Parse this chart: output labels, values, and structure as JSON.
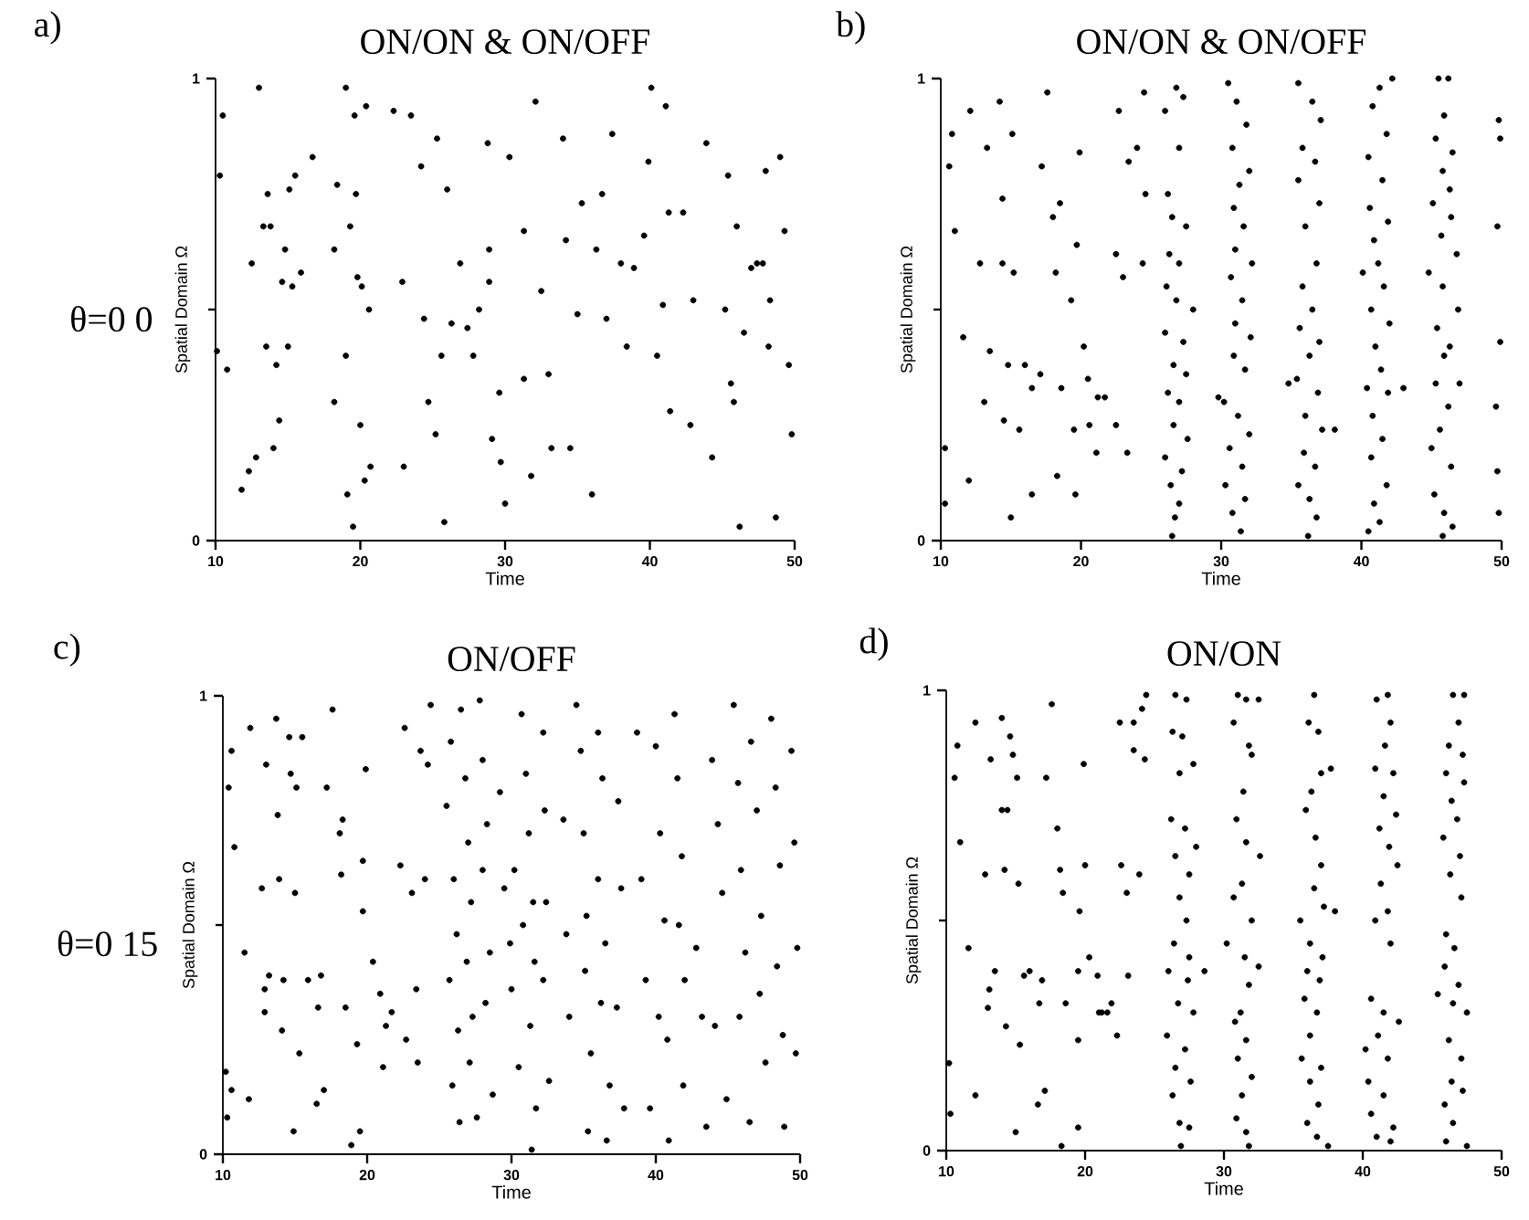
{
  "chart_data": [
    {
      "type": "scatter",
      "title": "ON/ON & ON/OFF",
      "xlabel": "Time",
      "ylabel": "Spatial Domain Ω",
      "annotations": [
        "a)",
        "θ=0 0"
      ],
      "color": "#000000",
      "marker": "circle",
      "xlim": [
        10,
        50
      ],
      "ylim": [
        0,
        1
      ],
      "xticks": [
        10,
        20,
        30,
        40,
        50
      ],
      "yticks": [
        0,
        1
      ],
      "x": [
        10.5,
        10.3,
        10.8,
        10.1,
        11.8,
        12.3,
        12.5,
        12.8,
        13.0,
        13.3,
        13.5,
        13.6,
        13.8,
        14.0,
        14.2,
        14.4,
        14.6,
        14.8,
        15.0,
        15.1,
        15.3,
        15.5,
        15.9,
        16.7,
        18.2,
        18.2,
        18.4,
        19.0,
        19.0,
        19.1,
        19.3,
        19.5,
        19.6,
        19.7,
        19.8,
        20.0,
        20.1,
        20.3,
        20.4,
        20.6,
        20.7,
        22.3,
        22.9,
        23.0,
        23.5,
        24.2,
        24.4,
        24.7,
        25.2,
        25.3,
        25.6,
        25.8,
        26.0,
        26.3,
        26.9,
        27.4,
        27.8,
        28.2,
        28.8,
        28.9,
        28.9,
        29.1,
        29.6,
        29.7,
        30.0,
        30.3,
        31.3,
        31.3,
        31.8,
        32.1,
        32.5,
        33.0,
        33.2,
        34.0,
        34.2,
        34.5,
        35.0,
        35.3,
        36.0,
        36.3,
        36.7,
        37.0,
        37.4,
        38.0,
        38.4,
        38.9,
        39.6,
        39.9,
        40.1,
        40.5,
        40.9,
        41.1,
        41.3,
        41.4,
        42.3,
        42.8,
        43.0,
        43.9,
        44.3,
        45.2,
        45.4,
        45.6,
        45.8,
        46.0,
        46.2,
        46.5,
        47.0,
        47.4,
        47.8,
        48.0,
        48.2,
        48.3,
        48.7,
        49.0,
        49.3,
        49.6,
        49.8
      ],
      "values": [
        0.92,
        0.79,
        0.37,
        0.41,
        0.11,
        0.15,
        0.6,
        0.18,
        0.98,
        0.68,
        0.42,
        0.75,
        0.68,
        0.2,
        0.38,
        0.26,
        0.56,
        0.63,
        0.42,
        0.76,
        0.55,
        0.79,
        0.58,
        0.83,
        0.63,
        0.3,
        0.77,
        0.98,
        0.4,
        0.1,
        0.68,
        0.03,
        0.92,
        0.75,
        0.57,
        0.25,
        0.55,
        0.13,
        0.94,
        0.5,
        0.16,
        0.93,
        0.56,
        0.16,
        0.92,
        0.81,
        0.48,
        0.3,
        0.23,
        0.87,
        0.4,
        0.04,
        0.76,
        0.47,
        0.6,
        0.46,
        0.4,
        0.5,
        0.86,
        0.63,
        0.56,
        0.22,
        0.32,
        0.17,
        0.08,
        0.83,
        0.67,
        0.35,
        0.14,
        0.95,
        0.54,
        0.36,
        0.2,
        0.87,
        0.65,
        0.2,
        0.49,
        0.73,
        0.1,
        0.63,
        0.75,
        0.48,
        0.88,
        0.6,
        0.42,
        0.59,
        0.66,
        0.82,
        0.98,
        0.4,
        0.51,
        0.94,
        0.71,
        0.28,
        0.71,
        0.25,
        0.52,
        0.86,
        0.18,
        0.5,
        0.79,
        0.34,
        0.3,
        0.68,
        0.03,
        0.45,
        0.59,
        0.6,
        0.6,
        0.8,
        0.42,
        0.52,
        0.05,
        0.83,
        0.67,
        0.38,
        0.23
      ]
    },
    {
      "type": "scatter",
      "title": "ON/ON & ON/OFF",
      "xlabel": "Time",
      "ylabel": "Spatial Domain Ω",
      "annotations": [
        "b)"
      ],
      "color": "#000000",
      "marker": "circle",
      "xlim": [
        10,
        50
      ],
      "ylim": [
        0,
        1
      ],
      "xticks": [
        10,
        20,
        30,
        40,
        50
      ],
      "yticks": [
        0,
        1
      ],
      "x": [
        10.3,
        10.3,
        10.6,
        10.8,
        11.0,
        11.6,
        12.0,
        12.1,
        12.8,
        13.1,
        13.3,
        13.5,
        14.2,
        14.4,
        14.4,
        14.5,
        14.8,
        15.0,
        15.1,
        15.2,
        15.6,
        16.0,
        16.5,
        16.5,
        17.1,
        17.2,
        17.6,
        18.0,
        18.2,
        18.3,
        18.5,
        18.6,
        19.3,
        19.5,
        19.6,
        19.7,
        19.9,
        20.2,
        20.6,
        20.5,
        21.1,
        21.2,
        21.7,
        22.5,
        22.5,
        22.7,
        23.0,
        23.3,
        23.4,
        24.0,
        24.4,
        24.5,
        24.6,
        26.0,
        26.8,
        27.3,
        26.2,
        27.0,
        26.5,
        27.5,
        26.3,
        27.0,
        26.1,
        26.8,
        28.0,
        26.0,
        27.3,
        26.6,
        27.5,
        26.2,
        27.0,
        26.6,
        27.6,
        26.0,
        27.2,
        26.4,
        27.0,
        26.7,
        26.5,
        30.5,
        31.1,
        31.8,
        30.8,
        32.0,
        31.3,
        30.9,
        31.6,
        31.0,
        32.2,
        30.7,
        31.5,
        31.0,
        32.1,
        30.9,
        31.7,
        30.2,
        31.2,
        32.0,
        30.6,
        31.5,
        30.3,
        31.7,
        30.8,
        31.4,
        29.8,
        35.5,
        36.5,
        37.1,
        35.8,
        36.7,
        35.5,
        37.0,
        36.0,
        36.8,
        35.8,
        36.5,
        35.6,
        37.0,
        36.3,
        35.4,
        36.9,
        36.0,
        37.2,
        35.9,
        36.7,
        35.5,
        36.3,
        36.8,
        36.2,
        38.1,
        34.8,
        41.3,
        42.2,
        40.8,
        41.8,
        40.5,
        41.5,
        40.6,
        41.9,
        40.9,
        41.2,
        40.1,
        41.6,
        40.7,
        42.0,
        41.0,
        41.4,
        40.4,
        41.9,
        43.0,
        40.8,
        41.5,
        40.7,
        41.8,
        40.9,
        41.3,
        40.5,
        45.5,
        46.2,
        45.9,
        45.3,
        46.5,
        45.8,
        46.3,
        45.1,
        46.4,
        45.7,
        46.8,
        44.8,
        45.8,
        46.9,
        45.4,
        46.3,
        45.9,
        47.0,
        45.3,
        46.2,
        45.6,
        45.0,
        46.4,
        45.2,
        45.9,
        46.5,
        45.8,
        49.8,
        49.9,
        49.7,
        49.9,
        49.6,
        49.7,
        49.8
      ],
      "values": [
        0.2,
        0.08,
        0.81,
        0.88,
        0.67,
        0.44,
        0.13,
        0.93,
        0.6,
        0.3,
        0.85,
        0.41,
        0.95,
        0.74,
        0.6,
        0.26,
        0.38,
        0.05,
        0.88,
        0.58,
        0.24,
        0.38,
        0.1,
        0.33,
        0.36,
        0.81,
        0.97,
        0.7,
        0.58,
        0.14,
        0.73,
        0.33,
        0.52,
        0.24,
        0.1,
        0.64,
        0.84,
        0.42,
        0.25,
        0.35,
        0.19,
        0.31,
        0.31,
        0.62,
        0.25,
        0.93,
        0.57,
        0.19,
        0.82,
        0.85,
        0.6,
        0.97,
        0.75,
        0.93,
        0.98,
        0.96,
        0.75,
        0.85,
        0.7,
        0.68,
        0.62,
        0.6,
        0.55,
        0.52,
        0.5,
        0.45,
        0.43,
        0.38,
        0.36,
        0.32,
        0.3,
        0.25,
        0.22,
        0.18,
        0.15,
        0.12,
        0.08,
        0.05,
        0.01,
        0.99,
        0.95,
        0.9,
        0.85,
        0.8,
        0.77,
        0.72,
        0.68,
        0.63,
        0.6,
        0.57,
        0.52,
        0.47,
        0.44,
        0.4,
        0.37,
        0.3,
        0.27,
        0.23,
        0.2,
        0.16,
        0.12,
        0.09,
        0.06,
        0.02,
        0.31,
        0.99,
        0.95,
        0.91,
        0.85,
        0.82,
        0.78,
        0.73,
        0.68,
        0.6,
        0.55,
        0.5,
        0.46,
        0.43,
        0.4,
        0.35,
        0.32,
        0.27,
        0.24,
        0.19,
        0.16,
        0.12,
        0.09,
        0.05,
        0.01,
        0.24,
        0.34,
        0.98,
        1.0,
        0.94,
        0.88,
        0.83,
        0.78,
        0.72,
        0.69,
        0.65,
        0.6,
        0.58,
        0.55,
        0.5,
        0.47,
        0.42,
        0.37,
        0.33,
        0.32,
        0.33,
        0.27,
        0.22,
        0.18,
        0.12,
        0.08,
        0.04,
        0.02,
        1.0,
        1.0,
        0.92,
        0.87,
        0.84,
        0.8,
        0.76,
        0.73,
        0.7,
        0.66,
        0.62,
        0.58,
        0.55,
        0.5,
        0.46,
        0.42,
        0.4,
        0.34,
        0.34,
        0.29,
        0.24,
        0.2,
        0.16,
        0.1,
        0.06,
        0.03,
        0.01,
        0.91,
        0.87,
        0.68,
        0.43,
        0.29,
        0.15,
        0.06
      ]
    },
    {
      "type": "scatter",
      "title": "ON/OFF",
      "xlabel": "Time",
      "ylabel": "Spatial Domain Ω",
      "annotations": [
        "c)",
        "θ=0 15"
      ],
      "color": "#000000",
      "marker": "circle",
      "xlim": [
        10,
        50
      ],
      "ylim": [
        0,
        1
      ],
      "xticks": [
        10,
        20,
        30,
        40,
        50
      ],
      "yticks": [
        0,
        1
      ],
      "x": [
        10.2,
        10.3,
        10.4,
        10.6,
        10.8,
        10.6,
        11.5,
        11.8,
        11.9,
        12.7,
        12.9,
        12.9,
        13.0,
        13.2,
        13.7,
        13.8,
        13.9,
        14.1,
        14.2,
        14.6,
        14.7,
        14.9,
        15.0,
        15.1,
        15.3,
        15.5,
        15.9,
        16.5,
        16.6,
        16.8,
        17.0,
        17.2,
        17.6,
        18.1,
        18.2,
        18.3,
        18.5,
        18.9,
        19.3,
        19.5,
        19.7,
        19.7,
        19.9,
        20.4,
        20.9,
        21.1,
        21.3,
        21.7,
        22.3,
        22.6,
        22.7,
        23.1,
        23.5,
        23.4,
        23.7,
        24.0,
        24.2,
        24.4,
        25.5,
        25.8,
        26.0,
        26.2,
        25.7,
        26.3,
        25.9,
        26.4,
        26.5,
        26.8,
        27.0,
        27.2,
        26.9,
        27.3,
        27.1,
        27.6,
        27.8,
        28.0,
        28.3,
        28.0,
        28.5,
        28.2,
        28.7,
        29.2,
        29.5,
        29.9,
        30.2,
        30.0,
        30.5,
        30.7,
        31.0,
        31.2,
        31.5,
        30.8,
        31.6,
        31.3,
        31.7,
        31.4,
        32.2,
        32.3,
        32.4,
        32.2,
        32.6,
        33.6,
        33.8,
        34.0,
        34.5,
        34.8,
        35.0,
        35.2,
        35.1,
        35.5,
        35.3,
        36.0,
        36.3,
        36.0,
        36.5,
        36.2,
        36.8,
        36.6,
        37.4,
        37.6,
        37.3,
        37.8,
        38.7,
        39.0,
        39.3,
        39.6,
        40.0,
        40.3,
        40.6,
        40.2,
        40.8,
        40.9,
        41.3,
        41.5,
        41.8,
        41.6,
        42.0,
        41.9,
        42.8,
        43.2,
        43.5,
        43.9,
        44.3,
        44.6,
        44.1,
        44.9,
        45.4,
        45.7,
        45.9,
        46.2,
        45.8,
        46.5,
        46.6,
        47.0,
        47.3,
        47.2,
        47.6,
        48.0,
        48.3,
        48.6,
        48.4,
        48.8,
        48.9,
        49.4,
        49.6,
        49.8,
        49.7
      ],
      "values": [
        0.18,
        0.08,
        0.8,
        0.88,
        0.67,
        0.14,
        0.44,
        0.12,
        0.93,
        0.58,
        0.36,
        0.31,
        0.85,
        0.39,
        0.95,
        0.74,
        0.6,
        0.27,
        0.38,
        0.91,
        0.83,
        0.05,
        0.57,
        0.8,
        0.22,
        0.91,
        0.38,
        0.11,
        0.32,
        0.39,
        0.14,
        0.8,
        0.97,
        0.7,
        0.61,
        0.73,
        0.32,
        0.02,
        0.24,
        0.05,
        0.53,
        0.64,
        0.84,
        0.42,
        0.35,
        0.19,
        0.28,
        0.31,
        0.63,
        0.93,
        0.25,
        0.57,
        0.2,
        0.36,
        0.88,
        0.6,
        0.85,
        0.98,
        0.76,
        0.9,
        0.6,
        0.48,
        0.38,
        0.27,
        0.15,
        0.07,
        0.97,
        0.82,
        0.68,
        0.55,
        0.42,
        0.3,
        0.2,
        0.08,
        0.99,
        0.86,
        0.72,
        0.62,
        0.44,
        0.33,
        0.13,
        0.79,
        0.58,
        0.46,
        0.62,
        0.36,
        0.19,
        0.96,
        0.83,
        0.7,
        0.55,
        0.5,
        0.42,
        0.28,
        0.1,
        0.01,
        0.92,
        0.75,
        0.55,
        0.38,
        0.16,
        0.73,
        0.48,
        0.3,
        0.98,
        0.88,
        0.7,
        0.52,
        0.4,
        0.22,
        0.05,
        0.92,
        0.82,
        0.6,
        0.46,
        0.33,
        0.15,
        0.03,
        0.77,
        0.58,
        0.32,
        0.1,
        0.92,
        0.6,
        0.38,
        0.1,
        0.89,
        0.7,
        0.51,
        0.3,
        0.25,
        0.03,
        0.96,
        0.82,
        0.65,
        0.5,
        0.38,
        0.15,
        0.45,
        0.3,
        0.06,
        0.86,
        0.72,
        0.57,
        0.28,
        0.12,
        0.98,
        0.81,
        0.62,
        0.44,
        0.3,
        0.07,
        0.9,
        0.75,
        0.52,
        0.35,
        0.2,
        0.95,
        0.8,
        0.63,
        0.41,
        0.26,
        0.06,
        0.88,
        0.68,
        0.45,
        0.22
      ]
    },
    {
      "type": "scatter",
      "title": "ON/ON",
      "xlabel": "Time",
      "ylabel": "Spatial Domain Ω",
      "annotations": [
        "d)"
      ],
      "color": "#000000",
      "marker": "circle",
      "xlim": [
        10,
        50
      ],
      "ylim": [
        0,
        1
      ],
      "xticks": [
        10,
        20,
        30,
        40,
        50
      ],
      "yticks": [
        0,
        1
      ],
      "x": [
        10.2,
        10.3,
        10.6,
        10.8,
        11.0,
        11.6,
        12.1,
        12.1,
        12.8,
        13.0,
        13.1,
        13.2,
        13.5,
        14.0,
        14.0,
        14.2,
        14.3,
        14.4,
        14.6,
        14.8,
        15.0,
        15.1,
        15.2,
        15.3,
        15.6,
        16.0,
        16.6,
        16.7,
        16.9,
        17.1,
        17.2,
        17.6,
        18.0,
        18.2,
        18.4,
        18.6,
        18.3,
        19.5,
        19.5,
        19.6,
        19.9,
        20.0,
        19.5,
        20.3,
        20.9,
        21.0,
        21.2,
        21.6,
        21.9,
        22.3,
        22.5,
        22.6,
        23.1,
        23.0,
        23.5,
        23.5,
        23.9,
        24.1,
        24.3,
        24.4,
        26.5,
        27.3,
        26.3,
        27.0,
        26.8,
        27.8,
        26.2,
        27.2,
        28.0,
        26.5,
        27.5,
        26.8,
        27.3,
        26.4,
        27.5,
        26.0,
        27.4,
        28.6,
        26.7,
        27.8,
        25.9,
        27.2,
        26.5,
        27.6,
        26.3,
        26.8,
        27.5,
        26.9,
        31.0,
        31.6,
        32.5,
        30.7,
        31.8,
        32.0,
        31.4,
        30.9,
        31.6,
        32.6,
        31.3,
        30.7,
        32.0,
        30.2,
        31.5,
        32.5,
        31.8,
        31.2,
        30.8,
        31.6,
        31.0,
        32.0,
        31.3,
        30.9,
        31.6,
        31.8,
        36.5,
        36.1,
        36.8,
        37.0,
        36.3,
        37.7,
        35.9,
        36.6,
        37.0,
        36.5,
        37.2,
        38.0,
        35.5,
        36.2,
        37.1,
        36.0,
        36.9,
        35.8,
        36.7,
        36.2,
        35.6,
        37.0,
        36.2,
        36.8,
        36.0,
        36.7,
        37.5,
        41.0,
        41.8,
        42.0,
        41.6,
        40.9,
        42.2,
        41.5,
        42.4,
        41.2,
        41.9,
        42.5,
        41.3,
        40.9,
        41.8,
        42.0,
        40.6,
        41.5,
        42.6,
        41.1,
        40.2,
        41.8,
        40.4,
        41.5,
        40.6,
        42.2,
        41.0,
        42.0,
        46.5,
        47.3,
        46.9,
        46.2,
        47.2,
        46.0,
        47.3,
        46.4,
        46.8,
        45.8,
        47.0,
        46.3,
        47.1,
        46.0,
        46.6,
        45.9,
        46.9,
        45.4,
        46.5,
        47.5,
        46.2,
        47.1,
        46.4,
        47.2,
        45.9,
        46.5,
        46.0,
        47.5
      ],
      "values": [
        0.19,
        0.08,
        0.81,
        0.88,
        0.67,
        0.44,
        0.12,
        0.93,
        0.6,
        0.31,
        0.35,
        0.85,
        0.39,
        0.94,
        0.74,
        0.61,
        0.27,
        0.74,
        0.9,
        0.86,
        0.04,
        0.81,
        0.58,
        0.23,
        0.38,
        0.39,
        0.1,
        0.32,
        0.37,
        0.13,
        0.81,
        0.97,
        0.7,
        0.61,
        0.56,
        0.32,
        0.01,
        0.24,
        0.05,
        0.52,
        0.84,
        0.62,
        0.39,
        0.42,
        0.38,
        0.3,
        0.3,
        0.3,
        0.32,
        0.25,
        0.93,
        0.62,
        0.38,
        0.56,
        0.93,
        0.87,
        0.6,
        0.96,
        0.85,
        0.99,
        0.99,
        0.98,
        0.91,
        0.9,
        0.82,
        0.84,
        0.72,
        0.7,
        0.66,
        0.64,
        0.6,
        0.55,
        0.5,
        0.45,
        0.42,
        0.39,
        0.37,
        0.39,
        0.32,
        0.3,
        0.25,
        0.22,
        0.18,
        0.15,
        0.12,
        0.06,
        0.05,
        0.01,
        0.99,
        0.98,
        0.98,
        0.93,
        0.88,
        0.86,
        0.78,
        0.72,
        0.67,
        0.64,
        0.58,
        0.55,
        0.5,
        0.45,
        0.42,
        0.4,
        0.36,
        0.3,
        0.28,
        0.24,
        0.2,
        0.16,
        0.12,
        0.07,
        0.04,
        0.01,
        0.99,
        0.93,
        0.91,
        0.82,
        0.78,
        0.83,
        0.74,
        0.68,
        0.62,
        0.57,
        0.53,
        0.52,
        0.5,
        0.45,
        0.42,
        0.39,
        0.37,
        0.33,
        0.3,
        0.25,
        0.2,
        0.18,
        0.15,
        0.1,
        0.06,
        0.03,
        0.01,
        0.98,
        0.99,
        0.93,
        0.88,
        0.83,
        0.82,
        0.77,
        0.73,
        0.7,
        0.66,
        0.62,
        0.58,
        0.5,
        0.52,
        0.45,
        0.33,
        0.3,
        0.28,
        0.25,
        0.22,
        0.2,
        0.15,
        0.12,
        0.08,
        0.05,
        0.03,
        0.02,
        0.99,
        0.99,
        0.93,
        0.88,
        0.86,
        0.82,
        0.8,
        0.76,
        0.72,
        0.68,
        0.64,
        0.6,
        0.55,
        0.47,
        0.44,
        0.4,
        0.36,
        0.34,
        0.32,
        0.3,
        0.24,
        0.2,
        0.15,
        0.13,
        0.1,
        0.06,
        0.02,
        0.01
      ]
    }
  ]
}
